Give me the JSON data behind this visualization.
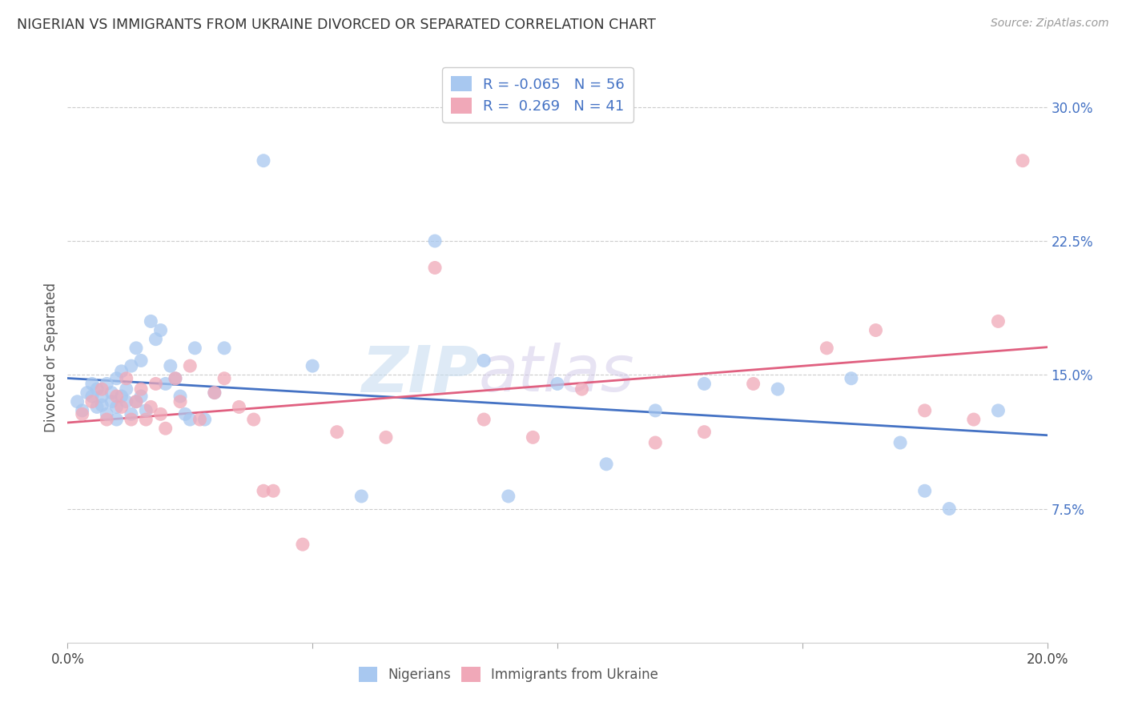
{
  "title": "NIGERIAN VS IMMIGRANTS FROM UKRAINE DIVORCED OR SEPARATED CORRELATION CHART",
  "source": "Source: ZipAtlas.com",
  "ylabel": "Divorced or Separated",
  "xlim": [
    0.0,
    0.2
  ],
  "ylim": [
    0.0,
    0.32
  ],
  "yticks": [
    0.075,
    0.15,
    0.225,
    0.3
  ],
  "ytick_labels": [
    "7.5%",
    "15.0%",
    "22.5%",
    "30.0%"
  ],
  "xticks": [
    0.0,
    0.05,
    0.1,
    0.15,
    0.2
  ],
  "legend_labels": [
    "Nigerians",
    "Immigrants from Ukraine"
  ],
  "R_nigerian": -0.065,
  "N_nigerian": 56,
  "R_ukraine": 0.269,
  "N_ukraine": 41,
  "color_nigerian": "#a8c8f0",
  "color_ukraine": "#f0a8b8",
  "line_color_nigerian": "#4472c4",
  "line_color_ukraine": "#e06080",
  "nigerian_x": [
    0.002,
    0.003,
    0.004,
    0.005,
    0.005,
    0.006,
    0.006,
    0.007,
    0.007,
    0.008,
    0.008,
    0.009,
    0.009,
    0.01,
    0.01,
    0.01,
    0.011,
    0.011,
    0.012,
    0.012,
    0.013,
    0.013,
    0.014,
    0.014,
    0.015,
    0.015,
    0.016,
    0.017,
    0.018,
    0.019,
    0.02,
    0.021,
    0.022,
    0.023,
    0.024,
    0.025,
    0.026,
    0.028,
    0.03,
    0.032,
    0.04,
    0.05,
    0.06,
    0.075,
    0.085,
    0.09,
    0.1,
    0.11,
    0.12,
    0.13,
    0.145,
    0.16,
    0.17,
    0.175,
    0.18,
    0.19
  ],
  "nigerian_y": [
    0.135,
    0.13,
    0.14,
    0.138,
    0.145,
    0.132,
    0.142,
    0.138,
    0.133,
    0.145,
    0.128,
    0.14,
    0.135,
    0.148,
    0.132,
    0.125,
    0.152,
    0.138,
    0.142,
    0.135,
    0.155,
    0.128,
    0.165,
    0.135,
    0.158,
    0.138,
    0.13,
    0.18,
    0.17,
    0.175,
    0.145,
    0.155,
    0.148,
    0.138,
    0.128,
    0.125,
    0.165,
    0.125,
    0.14,
    0.165,
    0.27,
    0.155,
    0.082,
    0.225,
    0.158,
    0.082,
    0.145,
    0.1,
    0.13,
    0.145,
    0.142,
    0.148,
    0.112,
    0.085,
    0.075,
    0.13
  ],
  "ukraine_x": [
    0.003,
    0.005,
    0.007,
    0.008,
    0.01,
    0.011,
    0.012,
    0.013,
    0.014,
    0.015,
    0.016,
    0.017,
    0.018,
    0.019,
    0.02,
    0.022,
    0.023,
    0.025,
    0.027,
    0.03,
    0.032,
    0.035,
    0.038,
    0.04,
    0.042,
    0.048,
    0.055,
    0.065,
    0.075,
    0.085,
    0.095,
    0.105,
    0.12,
    0.13,
    0.14,
    0.155,
    0.165,
    0.175,
    0.185,
    0.19,
    0.195
  ],
  "ukraine_y": [
    0.128,
    0.135,
    0.142,
    0.125,
    0.138,
    0.132,
    0.148,
    0.125,
    0.135,
    0.142,
    0.125,
    0.132,
    0.145,
    0.128,
    0.12,
    0.148,
    0.135,
    0.155,
    0.125,
    0.14,
    0.148,
    0.132,
    0.125,
    0.085,
    0.085,
    0.055,
    0.118,
    0.115,
    0.21,
    0.125,
    0.115,
    0.142,
    0.112,
    0.118,
    0.145,
    0.165,
    0.175,
    0.13,
    0.125,
    0.18,
    0.27
  ],
  "watermark_1": "ZIP",
  "watermark_2": "atlas",
  "background_color": "#ffffff",
  "grid_color": "#cccccc"
}
